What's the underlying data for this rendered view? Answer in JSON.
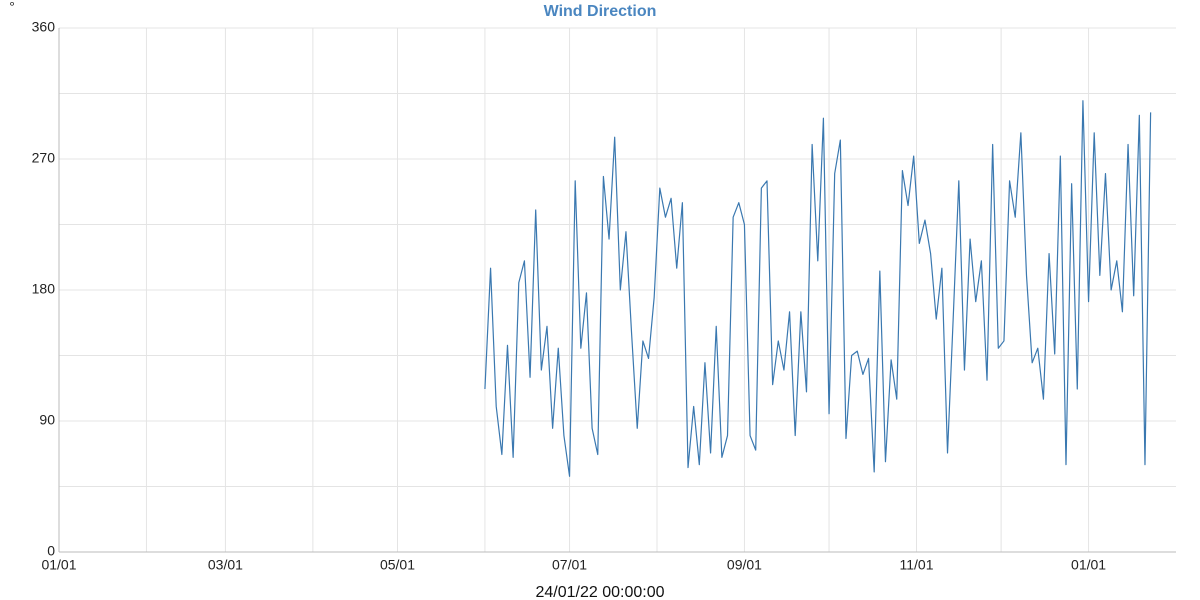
{
  "chart_data": {
    "type": "line",
    "title": "Wind Direction",
    "y_label": "°",
    "footer": "24/01/22 00:00:00",
    "xlim": [
      0,
      396
    ],
    "xticks": [
      {
        "value": 0,
        "label": "01/01"
      },
      {
        "value": 59,
        "label": "03/01"
      },
      {
        "value": 120,
        "label": "05/01"
      },
      {
        "value": 181,
        "label": "07/01"
      },
      {
        "value": 243,
        "label": "09/01"
      },
      {
        "value": 304,
        "label": "11/01"
      },
      {
        "value": 365,
        "label": "01/01"
      }
    ],
    "xminor": [
      31,
      90,
      151,
      212,
      273,
      334
    ],
    "ylim": [
      0,
      360
    ],
    "yticks": [
      0,
      90,
      180,
      270,
      360
    ],
    "yminor": [
      45,
      135,
      225,
      315
    ],
    "grid": true,
    "series": [
      {
        "color": "#3a78b0",
        "x": [
          151,
          153,
          155,
          157,
          159,
          161,
          163,
          165,
          167,
          169,
          171,
          173,
          175,
          177,
          179,
          181,
          183,
          185,
          187,
          189,
          191,
          193,
          195,
          197,
          199,
          201,
          203,
          205,
          207,
          209,
          211,
          213,
          215,
          217,
          219,
          221,
          223,
          225,
          227,
          229,
          231,
          233,
          235,
          237,
          239,
          241,
          243,
          245,
          247,
          249,
          251,
          253,
          255,
          257,
          259,
          261,
          263,
          265,
          267,
          269,
          271,
          273,
          275,
          277,
          279,
          281,
          283,
          285,
          287,
          289,
          291,
          293,
          295,
          297,
          299,
          301,
          303,
          305,
          307,
          309,
          311,
          313,
          315,
          317,
          319,
          321,
          323,
          325,
          327,
          329,
          331,
          333,
          335,
          337,
          339,
          341,
          343,
          345,
          347,
          349,
          351,
          353,
          355,
          357,
          359,
          361,
          363,
          365,
          367,
          369,
          371,
          373,
          375,
          377,
          379,
          381,
          383,
          385,
          387
        ],
        "values": [
          112,
          195,
          100,
          67,
          142,
          65,
          185,
          200,
          120,
          235,
          125,
          155,
          85,
          140,
          80,
          52,
          255,
          140,
          178,
          85,
          67,
          258,
          215,
          285,
          180,
          220,
          150,
          85,
          145,
          133,
          175,
          250,
          230,
          243,
          195,
          240,
          58,
          100,
          60,
          130,
          68,
          155,
          65,
          80,
          230,
          240,
          225,
          80,
          70,
          250,
          255,
          115,
          145,
          125,
          165,
          80,
          165,
          110,
          280,
          200,
          298,
          95,
          260,
          283,
          78,
          135,
          138,
          122,
          133,
          55,
          193,
          62,
          132,
          105,
          262,
          238,
          272,
          212,
          228,
          205,
          160,
          195,
          68,
          160,
          255,
          125,
          215,
          172,
          200,
          118,
          280,
          140,
          145,
          255,
          230,
          288,
          190,
          130,
          140,
          105,
          205,
          136,
          272,
          60,
          253,
          112,
          310,
          172,
          288,
          190,
          260,
          180,
          200,
          165,
          280,
          176,
          300,
          60,
          302
        ]
      }
    ]
  }
}
